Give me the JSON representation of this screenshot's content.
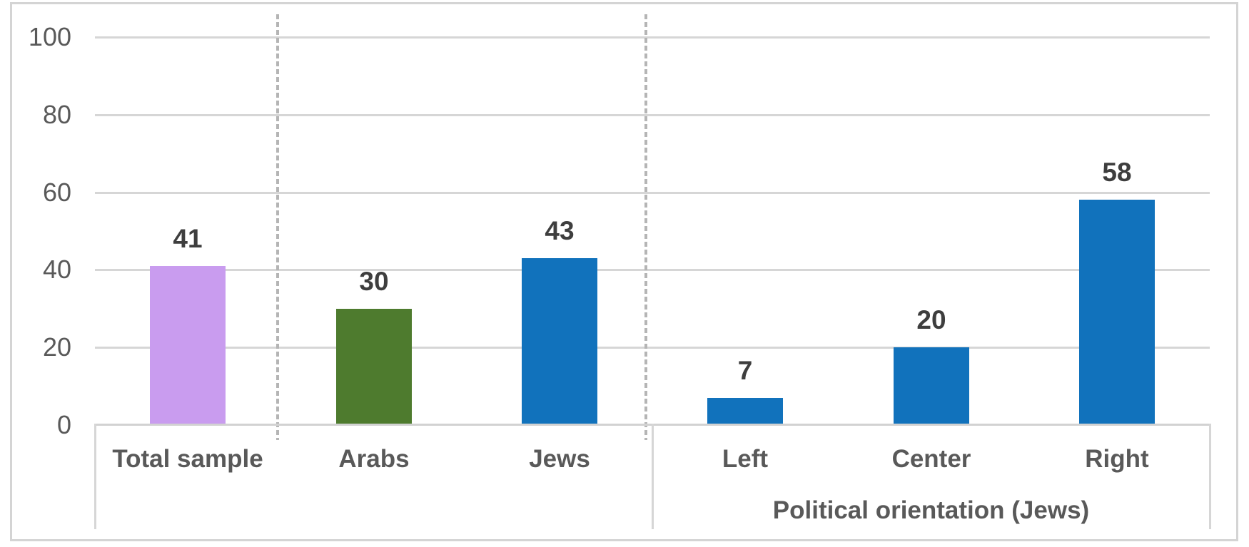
{
  "chart_data": {
    "type": "bar",
    "categories": [
      "Total sample",
      "Arabs",
      "Jews",
      "Left",
      "Center",
      "Right"
    ],
    "values": [
      41,
      30,
      43,
      7,
      20,
      58
    ],
    "bar_colors": [
      "#C99CEF",
      "#4E7B2E",
      "#1172BC",
      "#1172BC",
      "#1172BC",
      "#1172BC"
    ],
    "groups": [
      {
        "label": "",
        "span": [
          "Total sample",
          "Arabs",
          "Jews"
        ]
      },
      {
        "label": "Political orientation (Jews)",
        "span": [
          "Left",
          "Center",
          "Right"
        ]
      }
    ],
    "yticks": [
      0,
      20,
      40,
      60,
      80,
      100
    ],
    "ylim": [
      0,
      100
    ],
    "title": "",
    "xlabel": "",
    "ylabel": "",
    "grid": true,
    "legend": "none",
    "colors": {
      "gridline": "#D6D6D6",
      "axis_line": "#D2D2D2",
      "axis_text": "#595959",
      "data_label_text": "#3E3E3E",
      "dashed_separator": "#B5B5B5",
      "frame_border": "#D4D4D4",
      "background": "#FFFFFF"
    }
  }
}
